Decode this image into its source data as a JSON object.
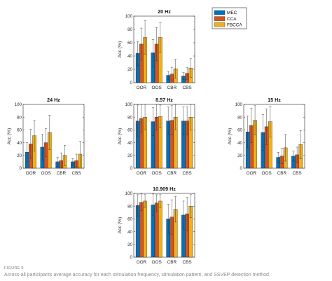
{
  "figure": {
    "label": "FIGURE 9",
    "caption": "Across-all participants average accuracy for each stimulation frequency, stimulation pattern, and SSVEP detection method."
  },
  "legend": {
    "placement": "right-of-top-panel",
    "entries": [
      {
        "name": "MEC",
        "color": "#0072BD"
      },
      {
        "name": "CCA",
        "color": "#D95319"
      },
      {
        "name": "FBCCA",
        "color": "#EDB120"
      }
    ]
  },
  "chart_data": [
    {
      "type": "bar",
      "title": "20 Hz",
      "ylabel": "Acc (%)",
      "ylim": [
        0,
        100
      ],
      "yticks": [
        0,
        20,
        40,
        60,
        80,
        100
      ],
      "categories": [
        "OOR",
        "OOS",
        "CBR",
        "CBS"
      ],
      "series": [
        {
          "name": "MEC",
          "values": [
            44,
            45,
            11,
            10
          ],
          "errors": [
            18,
            20,
            6,
            5
          ]
        },
        {
          "name": "CCA",
          "values": [
            58,
            58,
            13,
            14
          ],
          "errors": [
            24,
            25,
            10,
            9
          ]
        },
        {
          "name": "FBCCA",
          "values": [
            68,
            68,
            21,
            22
          ],
          "errors": [
            25,
            22,
            14,
            14
          ]
        }
      ]
    },
    {
      "type": "bar",
      "title": "24 Hz",
      "ylabel": "Acc (%)",
      "ylim": [
        0,
        100
      ],
      "yticks": [
        0,
        20,
        40,
        60,
        80,
        100
      ],
      "categories": [
        "OOR",
        "OOS",
        "CBR",
        "CBS"
      ],
      "series": [
        {
          "name": "MEC",
          "values": [
            25,
            33,
            10,
            10
          ],
          "errors": [
            15,
            20,
            7,
            5
          ]
        },
        {
          "name": "CCA",
          "values": [
            38,
            40,
            12,
            12
          ],
          "errors": [
            23,
            22,
            12,
            10
          ]
        },
        {
          "name": "FBCCA",
          "values": [
            51,
            56,
            20,
            22
          ],
          "errors": [
            24,
            27,
            16,
            20
          ]
        }
      ]
    },
    {
      "type": "bar",
      "title": "8.57 Hz",
      "ylabel": "Acc (%)",
      "ylim": [
        0,
        100
      ],
      "yticks": [
        0,
        20,
        40,
        60,
        80,
        100
      ],
      "categories": [
        "OOR",
        "OOS",
        "CBR",
        "CBS"
      ],
      "series": [
        {
          "name": "MEC",
          "values": [
            74,
            73,
            74,
            74
          ],
          "errors": [
            25,
            22,
            22,
            22
          ]
        },
        {
          "name": "CCA",
          "values": [
            78,
            80,
            75,
            74
          ],
          "errors": [
            22,
            20,
            23,
            22
          ]
        },
        {
          "name": "FBCCA",
          "values": [
            80,
            81,
            80,
            80
          ],
          "errors": [
            20,
            18,
            20,
            20
          ]
        }
      ]
    },
    {
      "type": "bar",
      "title": "15 Hz",
      "ylabel": "Acc (%)",
      "ylim": [
        0,
        100
      ],
      "yticks": [
        0,
        20,
        40,
        60,
        80,
        100
      ],
      "categories": [
        "OOR",
        "OOS",
        "CBR",
        "CBS"
      ],
      "series": [
        {
          "name": "MEC",
          "values": [
            57,
            56,
            17,
            19
          ],
          "errors": [
            25,
            28,
            8,
            8
          ]
        },
        {
          "name": "CCA",
          "values": [
            67,
            65,
            19,
            21
          ],
          "errors": [
            27,
            28,
            12,
            12
          ]
        },
        {
          "name": "FBCCA",
          "values": [
            75,
            73,
            32,
            37
          ],
          "errors": [
            23,
            24,
            21,
            22
          ]
        }
      ]
    },
    {
      "type": "bar",
      "title": "10.909 Hz",
      "ylabel": "Acc (%)",
      "ylim": [
        0,
        100
      ],
      "yticks": [
        0,
        20,
        40,
        60,
        80,
        100
      ],
      "categories": [
        "OOR",
        "OOS",
        "CBR",
        "CBS"
      ],
      "series": [
        {
          "name": "MEC",
          "values": [
            81,
            82,
            60,
            66
          ],
          "errors": [
            17,
            17,
            23,
            22
          ]
        },
        {
          "name": "CCA",
          "values": [
            86,
            85,
            63,
            68
          ],
          "errors": [
            13,
            13,
            27,
            26
          ]
        },
        {
          "name": "FBCCA",
          "values": [
            88,
            88,
            75,
            80
          ],
          "errors": [
            10,
            10,
            20,
            18
          ]
        }
      ]
    }
  ]
}
